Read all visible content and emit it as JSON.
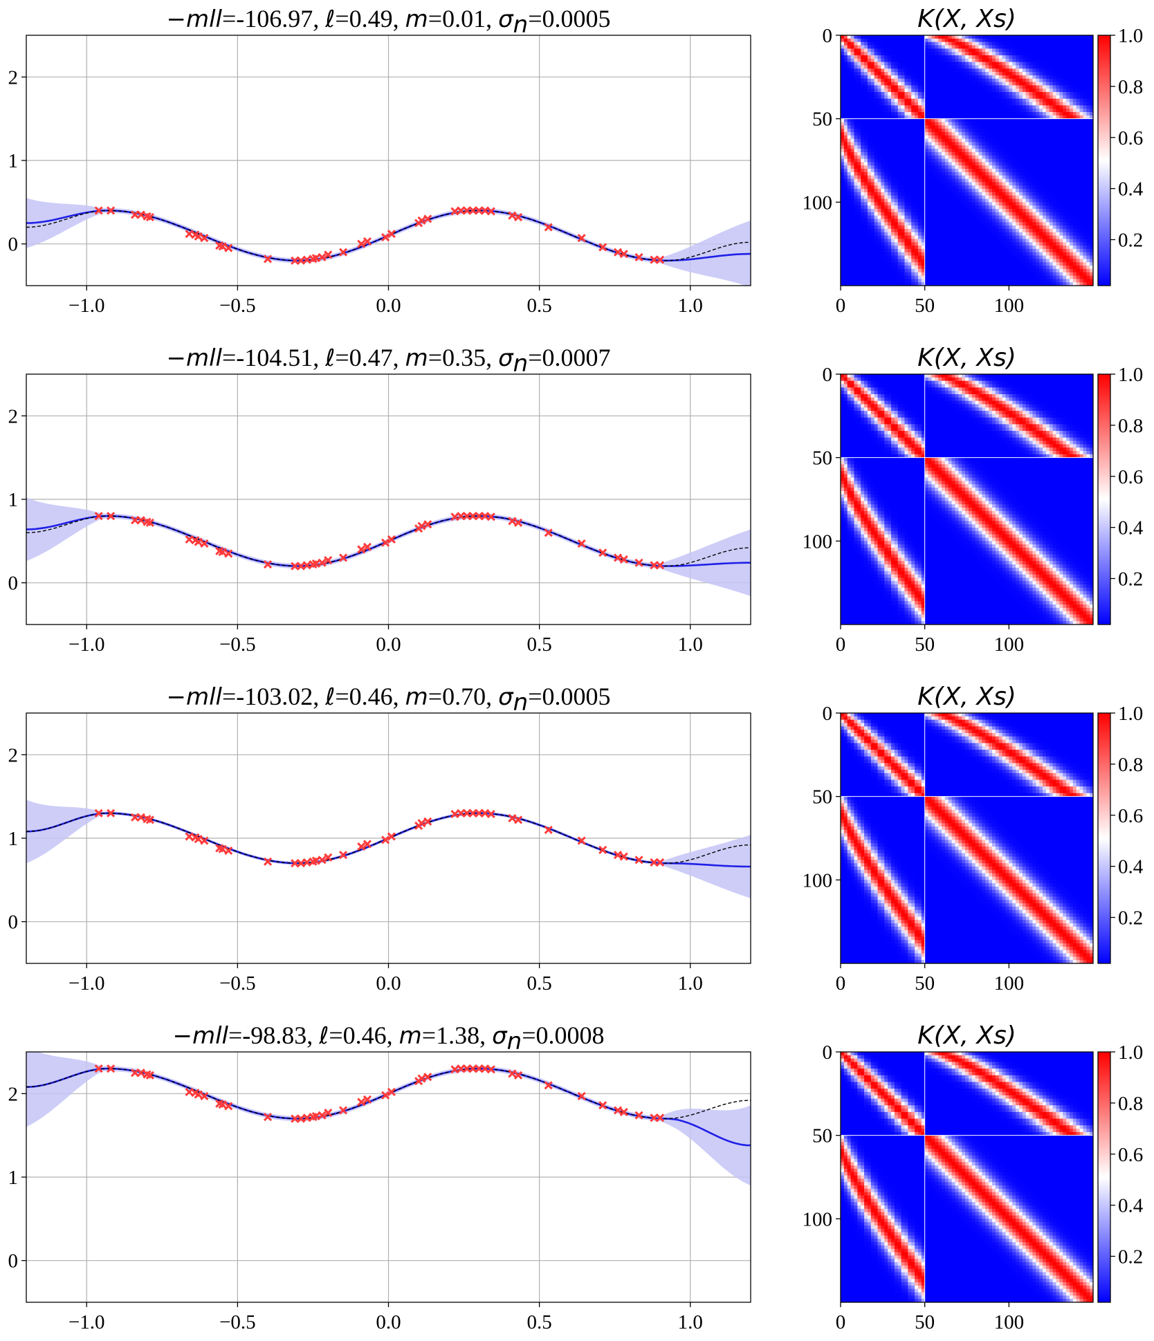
{
  "figure": {
    "rows": [
      {
        "mll": "-106.97",
        "ell": "0.49",
        "m": "0.01",
        "sigma_n": "0.0005"
      },
      {
        "mll": "-104.51",
        "ell": "0.47",
        "m": "0.35",
        "sigma_n": "0.0007"
      },
      {
        "mll": "-103.02",
        "ell": "0.46",
        "m": "0.70",
        "sigma_n": "0.0005"
      },
      {
        "mll": "-98.83",
        "ell": "0.46",
        "m": "1.38",
        "sigma_n": "0.0008"
      }
    ],
    "title_parts": {
      "mll_label": "−mll",
      "ell_symbol": "ℓ",
      "m_label": "m",
      "sigma_label": "σ",
      "sigma_sub": "n"
    },
    "kernel_title": "K(X, Xs)",
    "colors": {
      "mean": "#1f1fe6",
      "band": "#c4c4f7",
      "truth": "#000000",
      "points": "#ff3b3b",
      "cmap_low": "#0000ff",
      "cmap_mid": "#ffffff",
      "cmap_high": "#ff0000",
      "grid": "#b0b0b0"
    }
  },
  "chart_data": [
    {
      "type": "line",
      "title": "−mll=-106.97, ℓ=0.49, m=0.01, σn=0.0005",
      "xlim": [
        -1.2,
        1.2
      ],
      "ylim": [
        -0.5,
        2.5
      ],
      "x_ticks": [
        "−1.0",
        "−0.5",
        "0.0",
        "0.5",
        "1.0"
      ],
      "y_ticks": [
        "0",
        "1",
        "2"
      ],
      "grid": true,
      "offset": 0.1,
      "series": [
        {
          "name": "",
          "kind": "posterior-mean",
          "x": [
            -1.2,
            -0.93,
            -0.3,
            0.3,
            0.92,
            1.2
          ],
          "values": [
            0.25,
            0.4,
            -0.2,
            0.4,
            -0.2,
            -0.12
          ]
        },
        {
          "name": "",
          "kind": "true-function",
          "x": [
            -1.2,
            -0.93,
            -0.3,
            0.3,
            0.92,
            1.2
          ],
          "values": [
            0.2,
            0.4,
            -0.2,
            0.4,
            -0.2,
            0.02
          ]
        },
        {
          "name": "",
          "kind": "observations",
          "x": [
            -0.96,
            -0.92,
            -0.84,
            -0.82,
            -0.8,
            -0.79,
            -0.66,
            -0.64,
            -0.63,
            -0.61,
            -0.56,
            -0.55,
            -0.53,
            -0.4,
            -0.31,
            -0.29,
            -0.27,
            -0.25,
            -0.24,
            -0.22,
            -0.2,
            -0.15,
            -0.09,
            -0.07,
            -0.01,
            0.01,
            0.1,
            0.11,
            0.13,
            0.22,
            0.24,
            0.26,
            0.28,
            0.3,
            0.32,
            0.34,
            0.41,
            0.43,
            0.53,
            0.64,
            0.71,
            0.76,
            0.78,
            0.83,
            0.88,
            0.9
          ],
          "values": [
            0.4,
            0.4,
            0.35,
            0.35,
            0.33,
            0.32,
            0.12,
            0.11,
            0.09,
            0.07,
            -0.02,
            -0.03,
            -0.05,
            -0.18,
            -0.2,
            -0.2,
            -0.19,
            -0.18,
            -0.17,
            -0.16,
            -0.13,
            -0.1,
            0.0,
            0.03,
            0.08,
            0.12,
            0.25,
            0.28,
            0.3,
            0.39,
            0.4,
            0.4,
            0.4,
            0.4,
            0.4,
            0.39,
            0.34,
            0.32,
            0.2,
            0.07,
            -0.04,
            -0.1,
            -0.12,
            -0.16,
            -0.19,
            -0.19
          ]
        },
        {
          "name": "",
          "kind": "confidence-band-halfwidth",
          "x": [
            -1.2,
            -0.95,
            0.9,
            1.2
          ],
          "values": [
            0.3,
            0.03,
            0.03,
            0.4
          ]
        }
      ]
    },
    {
      "type": "line",
      "title": "−mll=-104.51, ℓ=0.47, m=0.35, σn=0.0007",
      "xlim": [
        -1.2,
        1.2
      ],
      "ylim": [
        -0.5,
        2.5
      ],
      "x_ticks": [
        "−1.0",
        "−0.5",
        "0.0",
        "0.5",
        "1.0"
      ],
      "y_ticks": [
        "0",
        "1",
        "2"
      ],
      "grid": true,
      "offset": 0.5,
      "series": [
        {
          "name": "",
          "kind": "posterior-mean",
          "x": [
            -1.2,
            -0.93,
            -0.3,
            0.3,
            0.92,
            1.2
          ],
          "values": [
            0.64,
            0.8,
            0.2,
            0.8,
            0.2,
            0.24
          ]
        },
        {
          "name": "",
          "kind": "true-function",
          "x": [
            -1.2,
            -0.93,
            -0.3,
            0.3,
            0.92,
            1.2
          ],
          "values": [
            0.6,
            0.8,
            0.2,
            0.8,
            0.2,
            0.42
          ]
        },
        {
          "name": "",
          "kind": "observations",
          "x": [
            -0.96,
            -0.92,
            -0.84,
            -0.82,
            -0.8,
            -0.79,
            -0.66,
            -0.64,
            -0.63,
            -0.61,
            -0.56,
            -0.55,
            -0.53,
            -0.4,
            -0.31,
            -0.29,
            -0.27,
            -0.25,
            -0.24,
            -0.22,
            -0.2,
            -0.15,
            -0.09,
            -0.07,
            -0.01,
            0.01,
            0.1,
            0.11,
            0.13,
            0.22,
            0.24,
            0.26,
            0.28,
            0.3,
            0.32,
            0.34,
            0.41,
            0.43,
            0.53,
            0.64,
            0.71,
            0.76,
            0.78,
            0.83,
            0.88,
            0.9
          ],
          "values": [
            0.8,
            0.8,
            0.75,
            0.75,
            0.73,
            0.72,
            0.52,
            0.51,
            0.49,
            0.47,
            0.38,
            0.37,
            0.35,
            0.22,
            0.2,
            0.2,
            0.21,
            0.22,
            0.23,
            0.24,
            0.27,
            0.3,
            0.4,
            0.43,
            0.48,
            0.52,
            0.65,
            0.68,
            0.7,
            0.79,
            0.8,
            0.8,
            0.8,
            0.8,
            0.8,
            0.79,
            0.74,
            0.72,
            0.6,
            0.47,
            0.36,
            0.3,
            0.28,
            0.24,
            0.21,
            0.21
          ]
        },
        {
          "name": "",
          "kind": "confidence-band-halfwidth",
          "x": [
            -1.2,
            -0.95,
            0.9,
            1.2
          ],
          "values": [
            0.38,
            0.03,
            0.03,
            0.4
          ]
        }
      ]
    },
    {
      "type": "line",
      "title": "−mll=-103.02, ℓ=0.46, m=0.70, σn=0.0005",
      "xlim": [
        -1.2,
        1.2
      ],
      "ylim": [
        -0.5,
        2.5
      ],
      "x_ticks": [
        "−1.0",
        "−0.5",
        "0.0",
        "0.5",
        "1.0"
      ],
      "y_ticks": [
        "0",
        "1",
        "2"
      ],
      "grid": true,
      "offset": 1.0,
      "series": [
        {
          "name": "",
          "kind": "posterior-mean",
          "x": [
            -1.2,
            -0.93,
            -0.3,
            0.3,
            0.92,
            1.2
          ],
          "values": [
            1.08,
            1.3,
            0.7,
            1.3,
            0.7,
            0.66
          ]
        },
        {
          "name": "",
          "kind": "true-function",
          "x": [
            -1.2,
            -0.93,
            -0.3,
            0.3,
            0.92,
            1.2
          ],
          "values": [
            1.08,
            1.3,
            0.7,
            1.3,
            0.7,
            0.92
          ]
        },
        {
          "name": "",
          "kind": "observations",
          "x": [
            -0.96,
            -0.92,
            -0.84,
            -0.82,
            -0.8,
            -0.79,
            -0.66,
            -0.64,
            -0.63,
            -0.61,
            -0.56,
            -0.55,
            -0.53,
            -0.4,
            -0.31,
            -0.29,
            -0.27,
            -0.25,
            -0.24,
            -0.22,
            -0.2,
            -0.15,
            -0.09,
            -0.07,
            -0.01,
            0.01,
            0.1,
            0.11,
            0.13,
            0.22,
            0.24,
            0.26,
            0.28,
            0.3,
            0.32,
            0.34,
            0.41,
            0.43,
            0.53,
            0.64,
            0.71,
            0.76,
            0.78,
            0.83,
            0.88,
            0.9
          ],
          "values": [
            1.3,
            1.3,
            1.25,
            1.25,
            1.23,
            1.22,
            1.02,
            1.01,
            0.99,
            0.97,
            0.88,
            0.87,
            0.85,
            0.72,
            0.7,
            0.7,
            0.71,
            0.72,
            0.73,
            0.74,
            0.77,
            0.8,
            0.9,
            0.93,
            0.98,
            1.02,
            1.15,
            1.18,
            1.2,
            1.29,
            1.3,
            1.3,
            1.3,
            1.3,
            1.3,
            1.29,
            1.24,
            1.22,
            1.1,
            0.97,
            0.86,
            0.8,
            0.78,
            0.74,
            0.71,
            0.71
          ]
        },
        {
          "name": "",
          "kind": "confidence-band-halfwidth",
          "x": [
            -1.2,
            -0.95,
            0.9,
            1.2
          ],
          "values": [
            0.38,
            0.02,
            0.02,
            0.38
          ]
        }
      ]
    },
    {
      "type": "line",
      "title": "−mll=-98.83, ℓ=0.46, m=1.38, σn=0.0008",
      "xlim": [
        -1.2,
        1.2
      ],
      "ylim": [
        -0.5,
        2.5
      ],
      "x_ticks": [
        "−1.0",
        "−0.5",
        "0.0",
        "0.5",
        "1.0"
      ],
      "y_ticks": [
        "0",
        "1",
        "2"
      ],
      "grid": true,
      "offset": 2.0,
      "series": [
        {
          "name": "",
          "kind": "posterior-mean",
          "x": [
            -1.2,
            -0.93,
            -0.3,
            0.3,
            0.92,
            1.2
          ],
          "values": [
            2.08,
            2.3,
            1.7,
            2.3,
            1.7,
            1.38
          ]
        },
        {
          "name": "",
          "kind": "true-function",
          "x": [
            -1.2,
            -0.93,
            -0.3,
            0.3,
            0.92,
            1.2
          ],
          "values": [
            2.08,
            2.3,
            1.7,
            2.3,
            1.7,
            1.92
          ]
        },
        {
          "name": "",
          "kind": "observations",
          "x": [
            -0.96,
            -0.92,
            -0.84,
            -0.82,
            -0.8,
            -0.79,
            -0.66,
            -0.64,
            -0.63,
            -0.61,
            -0.56,
            -0.55,
            -0.53,
            -0.4,
            -0.31,
            -0.29,
            -0.27,
            -0.25,
            -0.24,
            -0.22,
            -0.2,
            -0.15,
            -0.09,
            -0.07,
            -0.01,
            0.01,
            0.1,
            0.11,
            0.13,
            0.22,
            0.24,
            0.26,
            0.28,
            0.3,
            0.32,
            0.34,
            0.41,
            0.43,
            0.53,
            0.64,
            0.71,
            0.76,
            0.78,
            0.83,
            0.88,
            0.9
          ],
          "values": [
            2.3,
            2.3,
            2.25,
            2.25,
            2.23,
            2.22,
            2.02,
            2.01,
            1.99,
            1.97,
            1.88,
            1.87,
            1.85,
            1.72,
            1.7,
            1.7,
            1.71,
            1.72,
            1.73,
            1.74,
            1.77,
            1.8,
            1.9,
            1.93,
            1.98,
            2.02,
            2.15,
            2.18,
            2.2,
            2.29,
            2.3,
            2.3,
            2.3,
            2.3,
            2.3,
            2.29,
            2.24,
            2.22,
            2.1,
            1.97,
            1.86,
            1.8,
            1.78,
            1.74,
            1.71,
            1.71
          ]
        },
        {
          "name": "",
          "kind": "confidence-band-halfwidth",
          "x": [
            -1.2,
            -0.95,
            0.9,
            1.2
          ],
          "values": [
            0.48,
            0.03,
            0.03,
            0.48
          ]
        }
      ]
    },
    {
      "type": "heatmap",
      "title": "K(X, Xs)",
      "rows": 150,
      "cols": 150,
      "x_ticks": [
        "0",
        "50",
        "100"
      ],
      "y_ticks": [
        "0",
        "50",
        "100"
      ],
      "colorbar_ticks": [
        "1.0",
        "0.8",
        "0.6",
        "0.4",
        "0.2"
      ],
      "vrange": [
        0.0,
        1.0
      ],
      "repeats": 4
    }
  ]
}
